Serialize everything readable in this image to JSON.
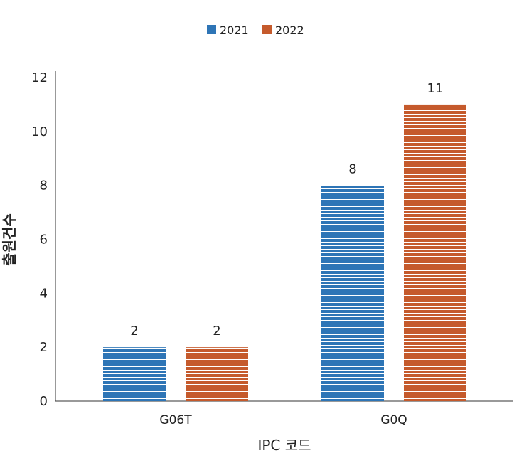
{
  "chart_data": {
    "type": "bar",
    "title": "",
    "xlabel": "IPC 코드",
    "ylabel": "출원건수",
    "categories": [
      "G06T",
      "G0Q"
    ],
    "series": [
      {
        "name": "2021",
        "values": [
          2,
          8
        ],
        "color": "#2E75B6"
      },
      {
        "name": "2022",
        "values": [
          2,
          11
        ],
        "color": "#C55A2C"
      }
    ],
    "ylim": [
      0,
      12
    ],
    "yticks": [
      "0",
      "2",
      "4",
      "6",
      "8",
      "10",
      "12"
    ],
    "grid": false,
    "legend": "top-center",
    "bar_fill": "horizontal white stripes",
    "data_labels": [
      [
        "2",
        "2"
      ],
      [
        "8",
        "11"
      ]
    ]
  }
}
